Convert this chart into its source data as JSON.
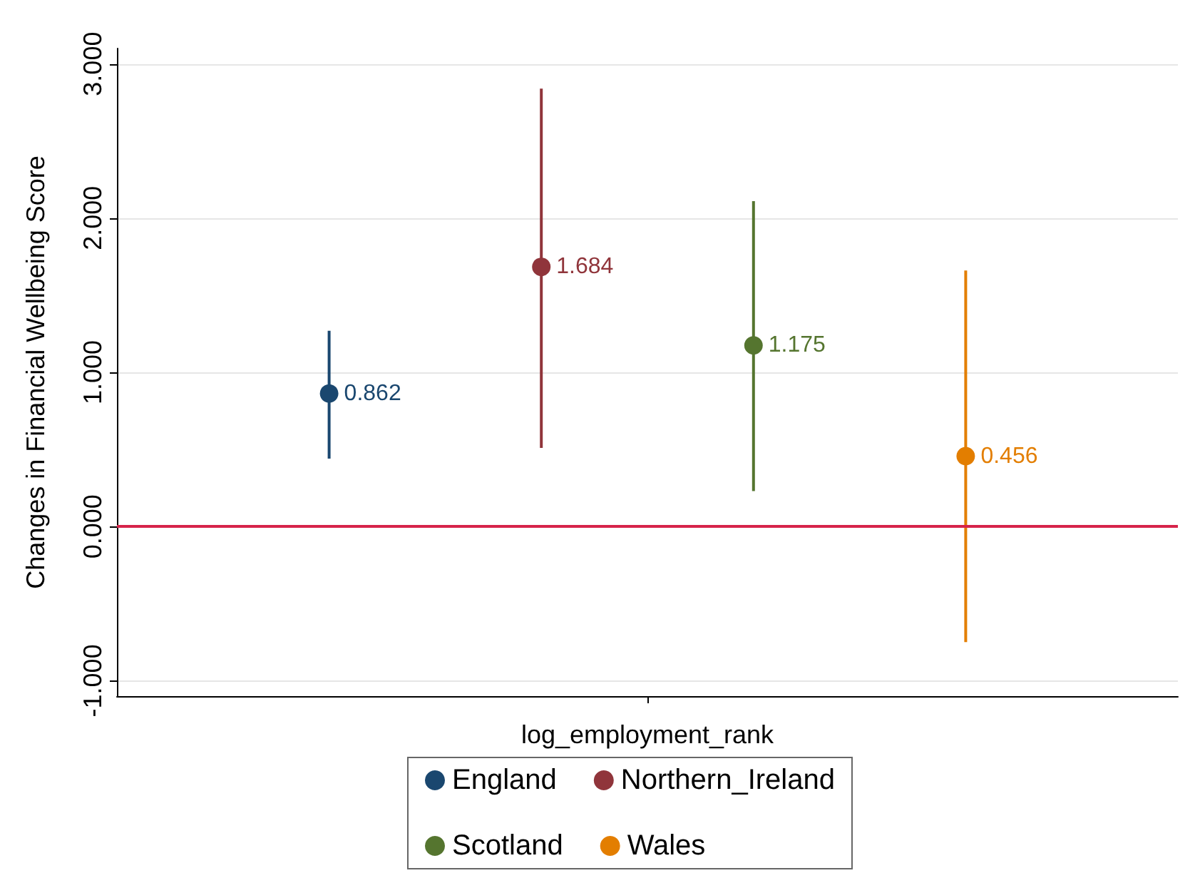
{
  "chart_data": {
    "type": "scatter",
    "ylabel": "Changes in Financial Wellbeing Score",
    "categories": [
      "log_employment_rank"
    ],
    "series": [
      {
        "name": "England",
        "color": "#1a476f",
        "values": [
          0.862
        ],
        "errors": [
          [
            0.44,
            1.27
          ]
        ]
      },
      {
        "name": "Northern_Ireland",
        "color": "#90353b",
        "values": [
          1.684
        ],
        "errors": [
          [
            0.51,
            2.84
          ]
        ]
      },
      {
        "name": "Scotland",
        "color": "#55752f",
        "values": [
          1.175
        ],
        "errors": [
          [
            0.23,
            2.11
          ]
        ]
      },
      {
        "name": "Wales",
        "color": "#e37e00",
        "values": [
          0.456
        ],
        "errors": [
          [
            -0.75,
            1.66
          ]
        ]
      }
    ],
    "ylim": [
      -1.1,
      3.1
    ],
    "yticks": [
      {
        "value": -1,
        "label": "-1.000"
      },
      {
        "value": 0,
        "label": "0.000"
      },
      {
        "value": 1,
        "label": "1.000"
      },
      {
        "value": 2,
        "label": "2.000"
      },
      {
        "value": 3,
        "label": "3.000"
      }
    ],
    "ref_lines": [
      {
        "axis": "y",
        "value": 0,
        "color": "#d6244a"
      }
    ],
    "grid": "y",
    "legend": "bottom",
    "marker": "circle",
    "data_labels": true
  }
}
